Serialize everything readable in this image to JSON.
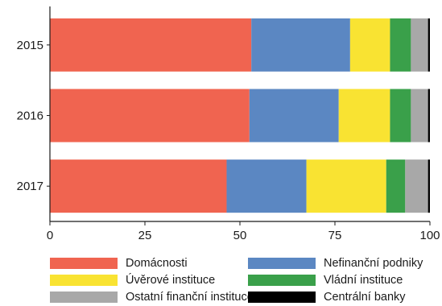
{
  "chart_data": {
    "type": "bar",
    "orientation": "horizontal",
    "stacked": true,
    "title": "",
    "xlabel": "",
    "ylabel": "",
    "categories": [
      "2015",
      "2016",
      "2017"
    ],
    "xlim": [
      0,
      100
    ],
    "x_ticks": [
      "0",
      "25",
      "50",
      "75",
      "100"
    ],
    "grid": false,
    "legend_position": "bottom",
    "series": [
      {
        "name": "Domácnosti",
        "color": "#f06450",
        "values": [
          53,
          52.5,
          46.5
        ]
      },
      {
        "name": "Nefinanční podniky",
        "color": "#5b87c2",
        "values": [
          26,
          23.5,
          21
        ]
      },
      {
        "name": "Úvěrové instituce",
        "color": "#f9e332",
        "values": [
          10.5,
          13.5,
          21
        ]
      },
      {
        "name": "Vládní instituce",
        "color": "#3aa04a",
        "values": [
          5.5,
          5.5,
          5
        ]
      },
      {
        "name": "Ostatní finanční instituce",
        "color": "#a8a8a8",
        "values": [
          4.5,
          4.5,
          6
        ]
      },
      {
        "name": "Centrální banky",
        "color": "#000000",
        "values": [
          0.5,
          0.5,
          0.5
        ]
      }
    ]
  }
}
